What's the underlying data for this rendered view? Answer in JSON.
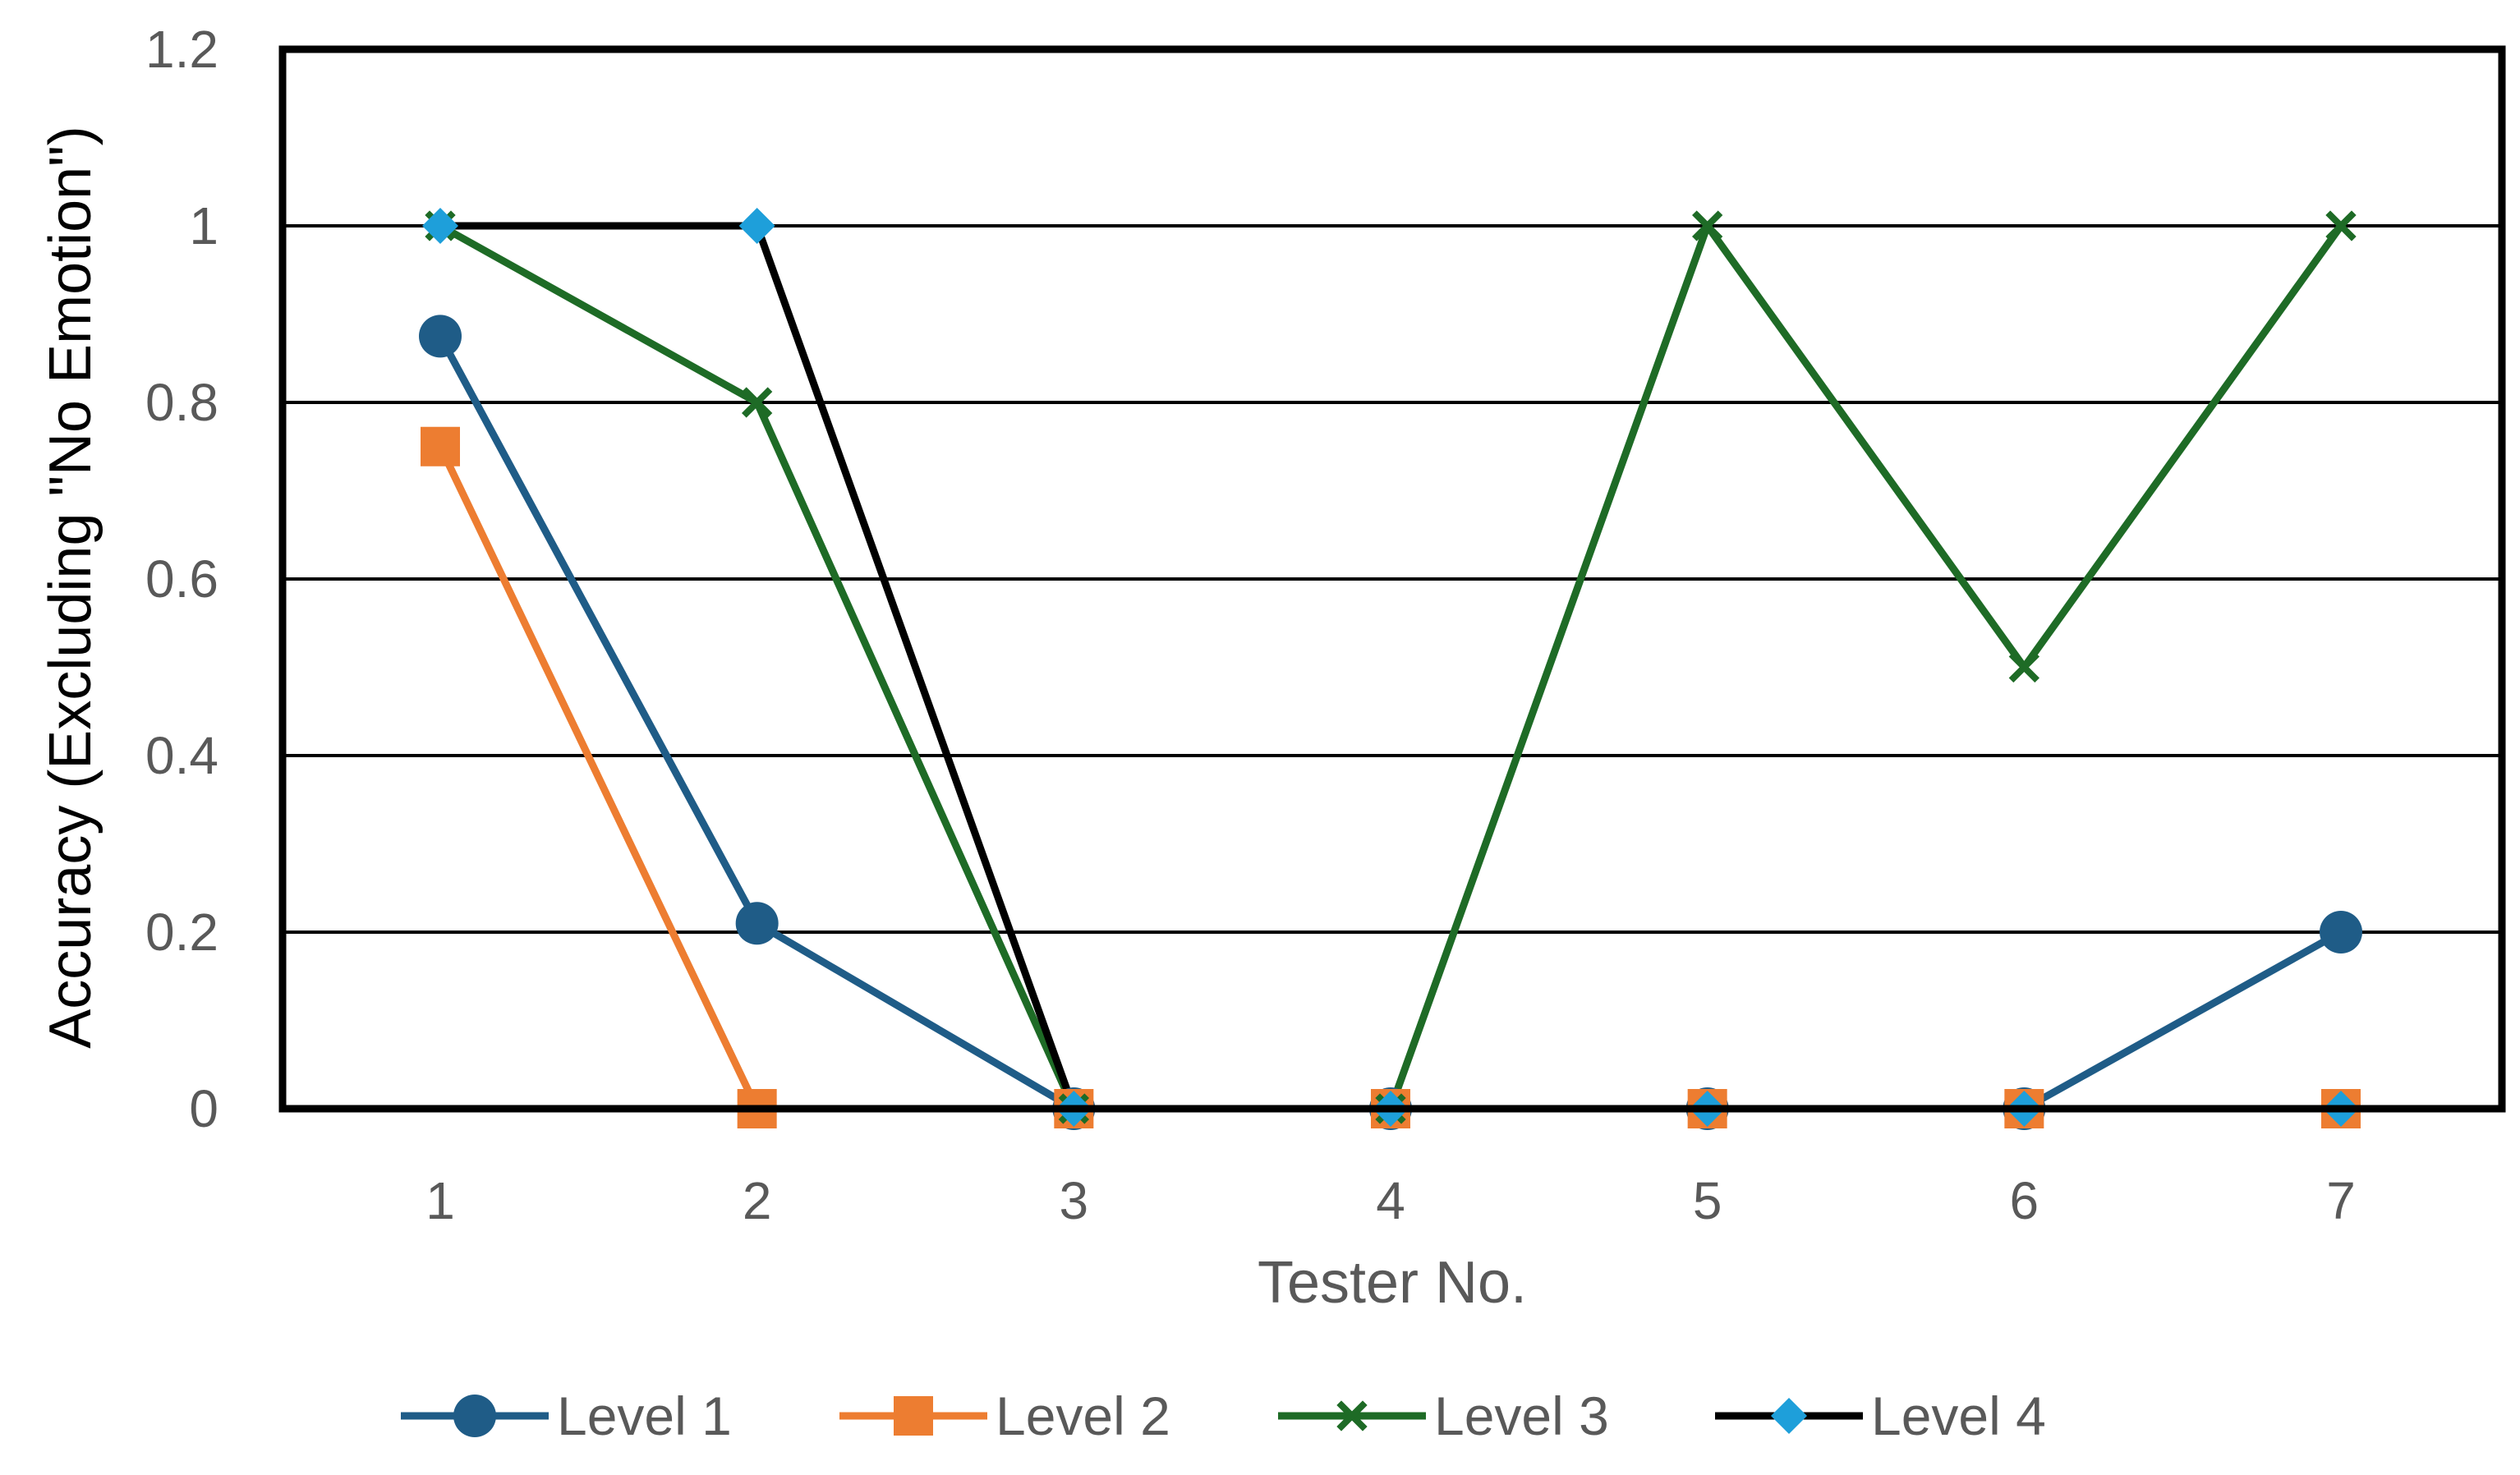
{
  "chart_data": {
    "type": "line",
    "title": "",
    "xlabel": "Tester No.",
    "ylabel": "Accuracy (Excluding \"No Emotion\")",
    "x": [
      1,
      2,
      3,
      4,
      5,
      6,
      7
    ],
    "x_tick_labels": [
      "1",
      "2",
      "3",
      "4",
      "5",
      "6",
      "7"
    ],
    "ylim": [
      0,
      1.2
    ],
    "y_ticks": [
      0,
      0.2,
      0.4,
      0.6,
      0.8,
      1,
      1.2
    ],
    "y_tick_labels": [
      "0",
      "0.2",
      "0.4",
      "0.6",
      "0.8",
      "1",
      "1.2"
    ],
    "grid": true,
    "legend_position": "bottom",
    "series": [
      {
        "name": "Level 1",
        "values": [
          0.875,
          0.21,
          0,
          0,
          0,
          0,
          0.2
        ],
        "color": "#1f5c87",
        "marker": "circle"
      },
      {
        "name": "Level 2",
        "values": [
          0.75,
          0,
          0,
          0,
          0,
          0,
          0
        ],
        "color": "#ed7d31",
        "marker": "square"
      },
      {
        "name": "Level 3",
        "values": [
          1,
          0.8,
          0,
          0,
          1,
          0.5,
          1
        ],
        "color": "#1e6b26",
        "marker": "x"
      },
      {
        "name": "Level 4",
        "values": [
          1,
          1,
          0,
          0,
          0,
          0,
          0
        ],
        "color": "#000000",
        "marker": "diamond",
        "marker_color": "#1e9fda"
      }
    ]
  }
}
